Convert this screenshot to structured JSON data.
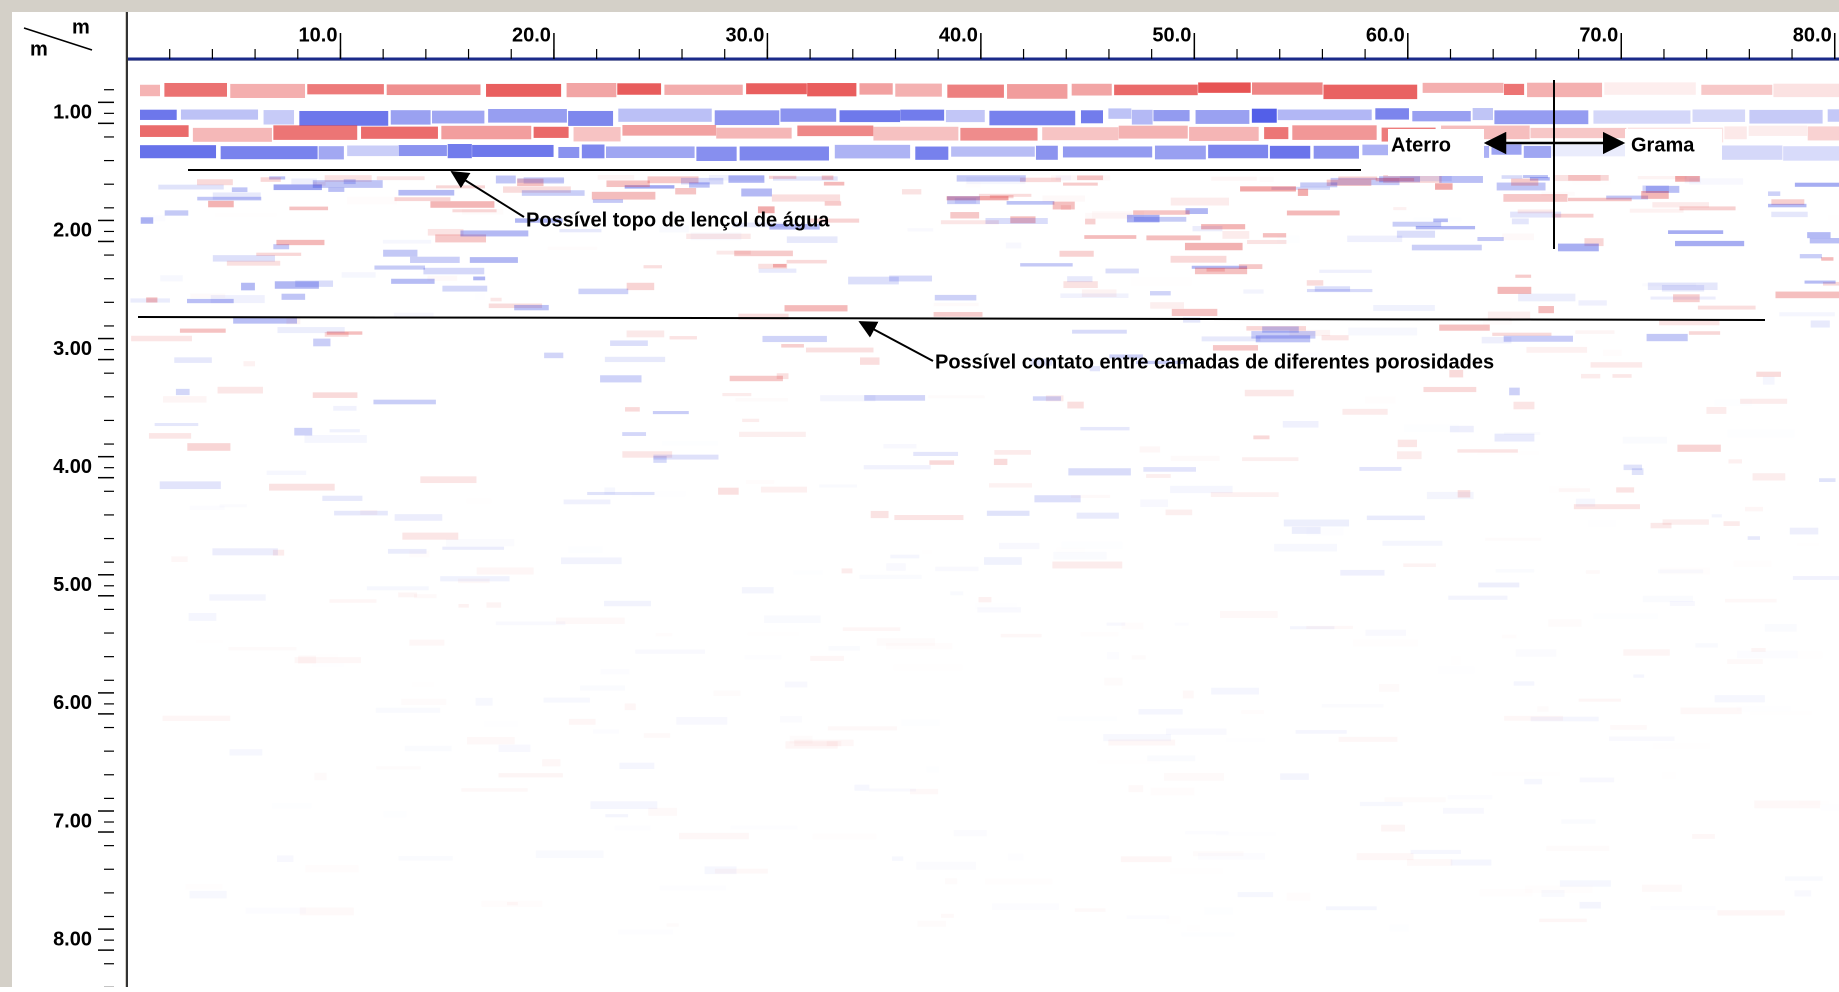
{
  "chart_data": {
    "type": "radargram",
    "x_unit": "m",
    "y_unit": "m",
    "xlim": [
      0,
      80.2
    ],
    "ylim": [
      0.65,
      8.49
    ],
    "xticks": [
      {
        "value": 10,
        "label": "10.0"
      },
      {
        "value": 20,
        "label": "20.0"
      },
      {
        "value": 30,
        "label": "30.0"
      },
      {
        "value": 40,
        "label": "40.0"
      },
      {
        "value": 50,
        "label": "50.0"
      },
      {
        "value": 60,
        "label": "60.0"
      },
      {
        "value": 70,
        "label": "70.0"
      },
      {
        "value": 80,
        "label": "80.0"
      }
    ],
    "yticks": [
      {
        "value": 1,
        "label": "1.00"
      },
      {
        "value": 2,
        "label": "2.00"
      },
      {
        "value": 3,
        "label": "3.00"
      },
      {
        "value": 4,
        "label": "4.00"
      },
      {
        "value": 5,
        "label": "5.00"
      },
      {
        "value": 6,
        "label": "6.00"
      },
      {
        "value": 7,
        "label": "7.00"
      },
      {
        "value": 8,
        "label": "8.00"
      }
    ],
    "annotations": [
      {
        "text": "Possível topo de lençol de água"
      },
      {
        "text": "Possível contato entre camadas de diferentes porosidades"
      },
      {
        "text": "Aterro"
      },
      {
        "text": "Grama"
      }
    ]
  }
}
